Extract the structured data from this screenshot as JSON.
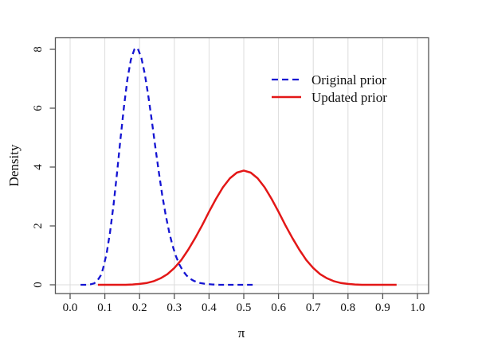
{
  "figure": {
    "background_color": "#ffffff",
    "frame_color": "#555555",
    "gridline_color": "#dcdcdc",
    "text_color": "#111111"
  },
  "chart_data": {
    "type": "line",
    "title": "",
    "xlabel": "π",
    "ylabel": "Density",
    "xlim": [
      0.0,
      1.0
    ],
    "ylim": [
      0,
      8
    ],
    "xticks": [
      0.0,
      0.1,
      0.2,
      0.3,
      0.4,
      0.5,
      0.6,
      0.7,
      0.8,
      0.9,
      1.0
    ],
    "xtick_labels": [
      "0.0",
      "0.1",
      "0.2",
      "0.3",
      "0.4",
      "0.5",
      "0.6",
      "0.7",
      "0.8",
      "0.9",
      "1.0"
    ],
    "yticks": [
      0,
      2,
      4,
      6,
      8
    ],
    "ytick_labels": [
      "0",
      "2",
      "4",
      "6",
      "8"
    ],
    "grid": "light vertical gridlines at every x tick, light horizontal baseline at y=0, white background",
    "legend_position": "inside top-right, no border box",
    "series": [
      {
        "name": "Original prior",
        "color": "#1414d2",
        "style": "dashed",
        "description": "Beta-shaped density, mode ≈ 0.19, peak ≈ 8.0, support drawn from ≈0.03 to ≈0.53",
        "points": [
          [
            0.03,
            0
          ],
          [
            0.05,
            0
          ],
          [
            0.06,
            0.02
          ],
          [
            0.07,
            0.05
          ],
          [
            0.08,
            0.17
          ],
          [
            0.09,
            0.35
          ],
          [
            0.095,
            0.56
          ],
          [
            0.105,
            1.06
          ],
          [
            0.115,
            1.78
          ],
          [
            0.125,
            2.71
          ],
          [
            0.135,
            3.8
          ],
          [
            0.145,
            4.95
          ],
          [
            0.155,
            6.05
          ],
          [
            0.165,
            6.98
          ],
          [
            0.175,
            7.65
          ],
          [
            0.185,
            8.0
          ],
          [
            0.19,
            8.05
          ],
          [
            0.195,
            8.02
          ],
          [
            0.205,
            7.72
          ],
          [
            0.215,
            7.17
          ],
          [
            0.225,
            6.43
          ],
          [
            0.235,
            5.59
          ],
          [
            0.245,
            4.71
          ],
          [
            0.255,
            3.86
          ],
          [
            0.265,
            3.07
          ],
          [
            0.275,
            2.38
          ],
          [
            0.285,
            1.8
          ],
          [
            0.295,
            1.33
          ],
          [
            0.305,
            0.96
          ],
          [
            0.315,
            0.68
          ],
          [
            0.325,
            0.47
          ],
          [
            0.335,
            0.32
          ],
          [
            0.345,
            0.21
          ],
          [
            0.355,
            0.14
          ],
          [
            0.37,
            0.07
          ],
          [
            0.39,
            0.03
          ],
          [
            0.41,
            0.01
          ],
          [
            0.43,
            0
          ],
          [
            0.46,
            0
          ],
          [
            0.5,
            0
          ],
          [
            0.53,
            0
          ]
        ]
      },
      {
        "name": "Updated prior",
        "color": "#e31717",
        "style": "solid",
        "description": "Beta-shaped density, mode = 0.50, peak ≈ 3.88, support drawn from ≈0.08 to ≈0.94",
        "points": [
          [
            0.08,
            0
          ],
          [
            0.1,
            0
          ],
          [
            0.12,
            0
          ],
          [
            0.14,
            0
          ],
          [
            0.16,
            0
          ],
          [
            0.18,
            0.01
          ],
          [
            0.2,
            0.03
          ],
          [
            0.22,
            0.06
          ],
          [
            0.24,
            0.12
          ],
          [
            0.26,
            0.22
          ],
          [
            0.28,
            0.36
          ],
          [
            0.3,
            0.57
          ],
          [
            0.32,
            0.84
          ],
          [
            0.34,
            1.19
          ],
          [
            0.36,
            1.59
          ],
          [
            0.38,
            2.02
          ],
          [
            0.4,
            2.48
          ],
          [
            0.42,
            2.92
          ],
          [
            0.44,
            3.31
          ],
          [
            0.46,
            3.62
          ],
          [
            0.48,
            3.81
          ],
          [
            0.5,
            3.88
          ],
          [
            0.52,
            3.81
          ],
          [
            0.54,
            3.62
          ],
          [
            0.56,
            3.31
          ],
          [
            0.58,
            2.92
          ],
          [
            0.6,
            2.48
          ],
          [
            0.62,
            2.02
          ],
          [
            0.64,
            1.59
          ],
          [
            0.66,
            1.19
          ],
          [
            0.68,
            0.84
          ],
          [
            0.7,
            0.57
          ],
          [
            0.72,
            0.36
          ],
          [
            0.74,
            0.22
          ],
          [
            0.76,
            0.12
          ],
          [
            0.78,
            0.06
          ],
          [
            0.8,
            0.03
          ],
          [
            0.82,
            0.01
          ],
          [
            0.84,
            0
          ],
          [
            0.86,
            0
          ],
          [
            0.88,
            0
          ],
          [
            0.9,
            0
          ],
          [
            0.94,
            0
          ]
        ]
      }
    ]
  }
}
